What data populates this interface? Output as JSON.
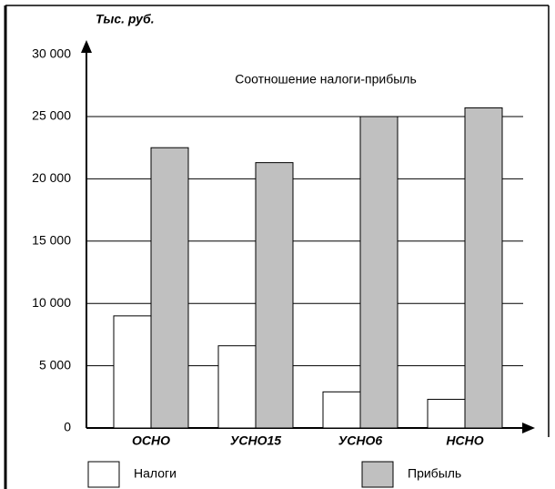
{
  "chart_data": {
    "type": "bar",
    "title": "Соотношение налоги-прибыль",
    "y_label": "Тыс. руб.",
    "categories": [
      "ОСНО",
      "УСНО15",
      "УСНО6",
      "НСНО"
    ],
    "series": [
      {
        "name": "Налоги",
        "color": "#ffffff",
        "values": [
          9000,
          6600,
          2900,
          2300
        ]
      },
      {
        "name": "Прибыль",
        "color": "#c0c0c0",
        "values": [
          22500,
          21300,
          25000,
          25700
        ]
      }
    ],
    "ylim": [
      0,
      30000
    ],
    "yticks": [
      {
        "value": 0,
        "label": "0"
      },
      {
        "value": 5000,
        "label": "5 000"
      },
      {
        "value": 10000,
        "label": "10 000"
      },
      {
        "value": 15000,
        "label": "15 000"
      },
      {
        "value": 20000,
        "label": "20 000"
      },
      {
        "value": 25000,
        "label": "25 000"
      },
      {
        "value": 30000,
        "label": "30 000"
      }
    ],
    "grid": true,
    "legend": "bottom"
  }
}
